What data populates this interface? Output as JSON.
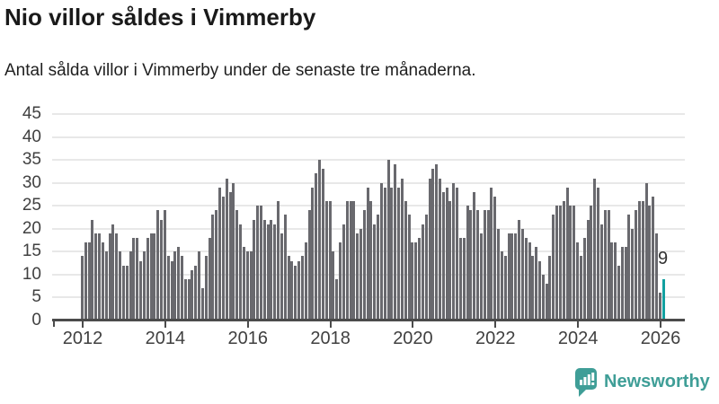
{
  "header": {
    "title": "Nio villor såldes i Vimmerby",
    "subtitle": "Antal sålda villor i Vimmerby under de senaste tre månaderna."
  },
  "chart_data": {
    "type": "bar",
    "title": "Nio villor såldes i Vimmerby",
    "subtitle": "Antal sålda villor i Vimmerby under de senaste tre månaderna.",
    "frequency": "monthly",
    "x_start": "2012-01",
    "x_end": "2026-02",
    "values": [
      14,
      17,
      17,
      22,
      19,
      19,
      17,
      15,
      19,
      21,
      19,
      15,
      12,
      12,
      15,
      18,
      18,
      13,
      15,
      18,
      19,
      19,
      24,
      22,
      24,
      14,
      13,
      15,
      16,
      14,
      9,
      9,
      11,
      12,
      15,
      7,
      14,
      18,
      23,
      24,
      29,
      27,
      31,
      28,
      30,
      24,
      21,
      16,
      15,
      15,
      22,
      25,
      25,
      22,
      21,
      22,
      21,
      26,
      19,
      23,
      14,
      13,
      12,
      13,
      14,
      17,
      24,
      29,
      32,
      35,
      33,
      26,
      26,
      15,
      9,
      17,
      21,
      26,
      26,
      26,
      19,
      20,
      24,
      29,
      26,
      21,
      23,
      30,
      29,
      35,
      29,
      34,
      29,
      31,
      26,
      23,
      17,
      17,
      18,
      21,
      23,
      31,
      33,
      34,
      31,
      28,
      29,
      26,
      30,
      29,
      18,
      18,
      25,
      24,
      28,
      24,
      19,
      24,
      24,
      29,
      27,
      20,
      15,
      14,
      19,
      19,
      19,
      22,
      20,
      18,
      17,
      14,
      16,
      13,
      10,
      8,
      14,
      23,
      25,
      25,
      26,
      29,
      25,
      25,
      17,
      14,
      18,
      22,
      25,
      31,
      29,
      21,
      24,
      24,
      17,
      17,
      12,
      16,
      16,
      23,
      20,
      24,
      26,
      26,
      30,
      25,
      27,
      19,
      6,
      9
    ],
    "highlight_index": 169,
    "highlight_label": "9",
    "y_ticks": [
      0,
      5,
      10,
      15,
      20,
      25,
      30,
      35,
      40,
      45
    ],
    "ylim": [
      0,
      45
    ],
    "x_tick_labels": [
      "2012",
      "2014",
      "2016",
      "2018",
      "2020",
      "2022",
      "2024",
      "2026"
    ],
    "grid": true,
    "legend": false,
    "bar_color": "#69696e",
    "highlight_color": "#12a0a0",
    "axis_color": "#4b4b4b",
    "grid_color": "#e8e8e8",
    "label_color": "#404040"
  },
  "footer": {
    "brand": "Newsworthy",
    "logo_icon": "bar-chart-speech-bubble-icon",
    "logo_color": "#3f9e97"
  }
}
